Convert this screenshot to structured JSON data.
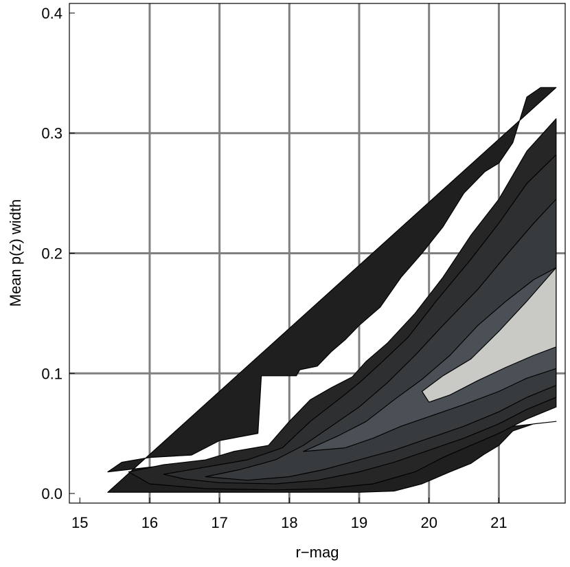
{
  "chart_data": {
    "type": "contour",
    "title": "",
    "xlabel": "r−mag",
    "ylabel": "Mean p(z) width",
    "xlim": [
      14.85,
      21.95
    ],
    "ylim": [
      -0.008,
      0.408
    ],
    "xticks": [
      15,
      16,
      17,
      18,
      19,
      20,
      21
    ],
    "xtick_labels": [
      "15",
      "16",
      "17",
      "18",
      "19",
      "20",
      "21"
    ],
    "yticks": [
      0.0,
      0.1,
      0.2,
      0.3,
      0.4
    ],
    "ytick_labels": [
      "0.0",
      "0.1",
      "0.2",
      "0.3",
      "0.4"
    ],
    "grid": true,
    "gridlines_x": [
      16,
      17,
      18,
      19,
      20,
      21
    ],
    "gridlines_y": [
      0.1,
      0.2,
      0.3
    ],
    "colors": {
      "grid": "#808080",
      "level_outer": "#1f1f1f",
      "level_2": "#262626",
      "level_3": "#2e2f31",
      "level_4": "#383b3e",
      "level_5": "#4b5057",
      "level_peak": "#c9c9c6",
      "contour_line": "#000000"
    },
    "levels": [
      {
        "name": "outer",
        "fill": "#1f1f1f",
        "upper": [
          [
            15.4,
            0.018
          ],
          [
            15.6,
            0.026
          ],
          [
            16.0,
            0.03
          ],
          [
            16.6,
            0.032
          ],
          [
            17.0,
            0.044
          ],
          [
            17.55,
            0.05
          ],
          [
            17.6,
            0.098
          ],
          [
            18.1,
            0.098
          ],
          [
            18.15,
            0.103
          ],
          [
            18.4,
            0.106
          ],
          [
            18.6,
            0.118
          ],
          [
            18.8,
            0.128
          ],
          [
            19.0,
            0.14
          ],
          [
            19.3,
            0.155
          ],
          [
            19.6,
            0.18
          ],
          [
            19.9,
            0.2
          ],
          [
            20.2,
            0.222
          ],
          [
            20.5,
            0.25
          ],
          [
            20.8,
            0.268
          ],
          [
            21.0,
            0.275
          ],
          [
            21.2,
            0.292
          ],
          [
            21.4,
            0.33
          ],
          [
            21.6,
            0.338
          ],
          [
            21.82,
            0.338
          ]
        ],
        "lower": [
          [
            15.4,
            0.001
          ],
          [
            16.0,
            0.001
          ],
          [
            17.0,
            0.001
          ],
          [
            18.0,
            0.001
          ],
          [
            19.0,
            0.001
          ],
          [
            19.5,
            0.002
          ],
          [
            19.9,
            0.008
          ],
          [
            20.3,
            0.018
          ],
          [
            20.6,
            0.025
          ],
          [
            20.8,
            0.033
          ],
          [
            21.0,
            0.04
          ],
          [
            21.2,
            0.052
          ],
          [
            21.5,
            0.058
          ],
          [
            21.82,
            0.06
          ]
        ]
      },
      {
        "name": "level-2",
        "fill": "#262626",
        "upper": [
          [
            15.7,
            0.018
          ],
          [
            16.2,
            0.024
          ],
          [
            16.8,
            0.028
          ],
          [
            17.2,
            0.035
          ],
          [
            17.7,
            0.04
          ],
          [
            18.0,
            0.06
          ],
          [
            18.3,
            0.078
          ],
          [
            18.6,
            0.088
          ],
          [
            18.9,
            0.097
          ],
          [
            19.1,
            0.11
          ],
          [
            19.4,
            0.125
          ],
          [
            19.8,
            0.15
          ],
          [
            20.2,
            0.18
          ],
          [
            20.6,
            0.215
          ],
          [
            21.0,
            0.245
          ],
          [
            21.4,
            0.285
          ],
          [
            21.82,
            0.312
          ]
        ],
        "lower": [
          [
            21.82,
            0.072
          ],
          [
            21.4,
            0.062
          ],
          [
            21.0,
            0.05
          ],
          [
            20.6,
            0.04
          ],
          [
            20.2,
            0.03
          ],
          [
            19.8,
            0.018
          ],
          [
            19.2,
            0.008
          ],
          [
            18.5,
            0.004
          ],
          [
            17.8,
            0.003
          ],
          [
            16.8,
            0.004
          ],
          [
            16.0,
            0.008
          ]
        ]
      },
      {
        "name": "level-3",
        "fill": "#2e2f31",
        "upper": [
          [
            16.2,
            0.016
          ],
          [
            16.8,
            0.022
          ],
          [
            17.4,
            0.028
          ],
          [
            17.9,
            0.038
          ],
          [
            18.3,
            0.06
          ],
          [
            18.7,
            0.078
          ],
          [
            19.0,
            0.092
          ],
          [
            19.3,
            0.108
          ],
          [
            19.7,
            0.13
          ],
          [
            20.1,
            0.16
          ],
          [
            20.6,
            0.195
          ],
          [
            21.0,
            0.225
          ],
          [
            21.4,
            0.258
          ],
          [
            21.82,
            0.282
          ]
        ],
        "lower": [
          [
            21.82,
            0.08
          ],
          [
            21.4,
            0.07
          ],
          [
            21.0,
            0.058
          ],
          [
            20.5,
            0.046
          ],
          [
            20.0,
            0.036
          ],
          [
            19.5,
            0.026
          ],
          [
            19.0,
            0.018
          ],
          [
            18.4,
            0.011
          ],
          [
            17.8,
            0.008
          ],
          [
            17.0,
            0.009
          ],
          [
            16.5,
            0.012
          ]
        ]
      },
      {
        "name": "level-4",
        "fill": "#383b3e",
        "upper": [
          [
            16.8,
            0.014
          ],
          [
            17.3,
            0.02
          ],
          [
            17.8,
            0.028
          ],
          [
            18.2,
            0.04
          ],
          [
            18.6,
            0.056
          ],
          [
            19.0,
            0.072
          ],
          [
            19.4,
            0.092
          ],
          [
            19.8,
            0.115
          ],
          [
            20.2,
            0.14
          ],
          [
            20.7,
            0.17
          ],
          [
            21.1,
            0.198
          ],
          [
            21.5,
            0.225
          ],
          [
            21.82,
            0.245
          ]
        ],
        "lower": [
          [
            21.82,
            0.09
          ],
          [
            21.4,
            0.08
          ],
          [
            21.0,
            0.068
          ],
          [
            20.5,
            0.056
          ],
          [
            20.0,
            0.046
          ],
          [
            19.5,
            0.036
          ],
          [
            19.0,
            0.028
          ],
          [
            18.5,
            0.02
          ],
          [
            18.0,
            0.014
          ],
          [
            17.4,
            0.011
          ]
        ]
      },
      {
        "name": "level-5",
        "fill": "#4b5057",
        "upper": [
          [
            18.2,
            0.035
          ],
          [
            18.7,
            0.048
          ],
          [
            19.1,
            0.06
          ],
          [
            19.5,
            0.078
          ],
          [
            19.9,
            0.095
          ],
          [
            20.3,
            0.115
          ],
          [
            20.7,
            0.14
          ],
          [
            21.1,
            0.16
          ],
          [
            21.5,
            0.178
          ],
          [
            21.82,
            0.188
          ]
        ],
        "lower": [
          [
            21.82,
            0.104
          ],
          [
            21.4,
            0.096
          ],
          [
            21.0,
            0.085
          ],
          [
            20.5,
            0.074
          ],
          [
            20.0,
            0.064
          ],
          [
            19.6,
            0.056
          ],
          [
            19.2,
            0.046
          ],
          [
            18.8,
            0.038
          ]
        ]
      },
      {
        "name": "peak",
        "fill": "#c9c9c6",
        "upper": [
          [
            19.9,
            0.085
          ],
          [
            20.2,
            0.098
          ],
          [
            20.6,
            0.112
          ],
          [
            21.0,
            0.135
          ],
          [
            21.4,
            0.16
          ],
          [
            21.82,
            0.188
          ]
        ],
        "lower": [
          [
            21.82,
            0.122
          ],
          [
            21.5,
            0.115
          ],
          [
            21.1,
            0.105
          ],
          [
            20.7,
            0.094
          ],
          [
            20.3,
            0.082
          ],
          [
            20.0,
            0.076
          ]
        ]
      }
    ]
  }
}
